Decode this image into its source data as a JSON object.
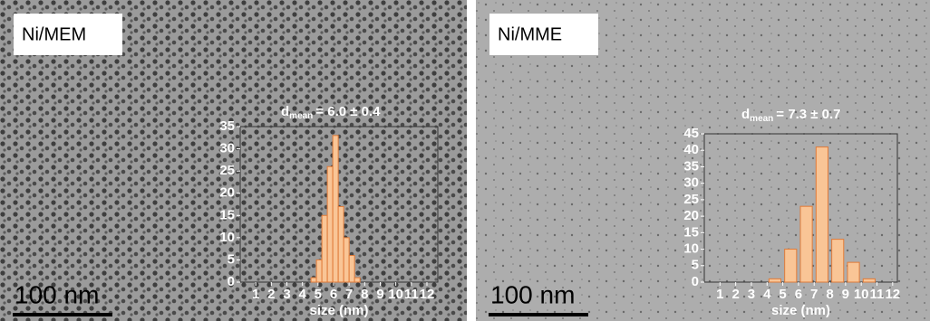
{
  "chart_data": [
    {
      "type": "histogram",
      "panel_label": "Ni/MEM",
      "scale_bar": "100 nm",
      "annotation": {
        "symbol": "d",
        "subscript": "mean",
        "text": "= 6.0 ± 0.4"
      },
      "xlabel": "size (nm)",
      "bins": [
        4.55,
        4.9,
        5.25,
        5.6,
        5.95,
        6.3,
        6.65,
        7.0,
        7.35,
        7.7
      ],
      "counts": [
        1,
        5,
        15,
        26,
        33,
        17,
        10,
        6,
        1
      ],
      "color": "#f9c596",
      "edge_color": "#e07b39",
      "xlim": [
        0,
        12.7
      ],
      "xticks": [
        1,
        2,
        3,
        4,
        5,
        6,
        7,
        8,
        9,
        10,
        11,
        12
      ],
      "ylim": [
        0,
        35
      ],
      "yticks": [
        0,
        5,
        10,
        15,
        20,
        25,
        30,
        35
      ]
    },
    {
      "type": "histogram",
      "panel_label": "Ni/MME",
      "scale_bar": "100 nm",
      "annotation": {
        "symbol": "d",
        "subscript": "mean",
        "text": "= 7.3 ± 0.7"
      },
      "xlabel": "size (nm)",
      "bins": [
        4,
        5,
        6,
        7,
        8,
        9,
        10,
        11
      ],
      "counts": [
        1,
        10,
        23,
        41,
        13,
        6,
        1
      ],
      "color": "#f9c596",
      "edge_color": "#e07b39",
      "xlim": [
        0,
        12.3
      ],
      "xticks": [
        1,
        2,
        3,
        4,
        5,
        6,
        7,
        8,
        9,
        10,
        11,
        12
      ],
      "ylim": [
        0,
        45
      ],
      "yticks": [
        0,
        5,
        10,
        15,
        20,
        25,
        30,
        35,
        40,
        45
      ]
    }
  ]
}
